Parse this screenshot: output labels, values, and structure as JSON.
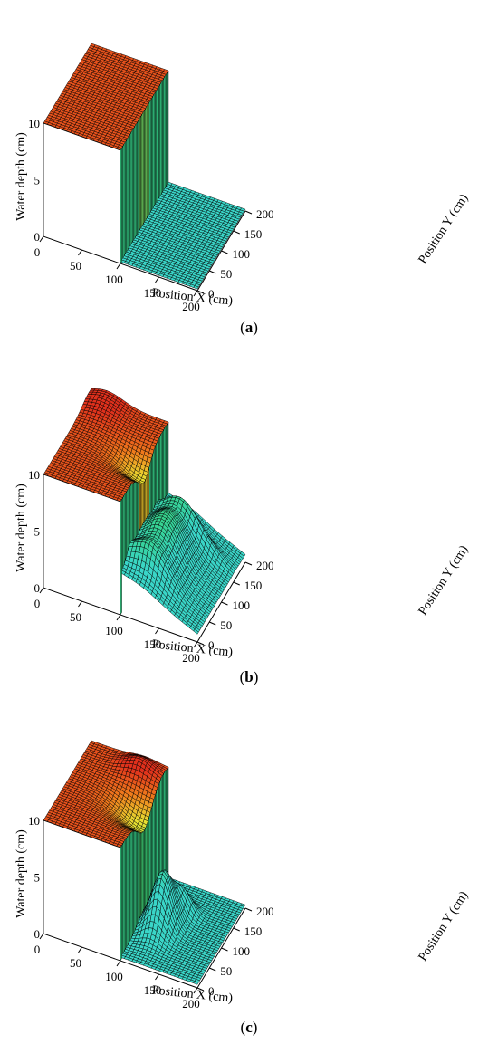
{
  "chart_data": [
    {
      "type": "surface3d",
      "panel_label": "a",
      "xlabel": "Position X (cm)",
      "ylabel": "Position Y (cm)",
      "zlabel": "Water depth (cm)",
      "xlim": [
        0,
        200
      ],
      "ylim": [
        0,
        200
      ],
      "zlim": [
        0,
        10
      ],
      "x_ticks": [
        0,
        50,
        100,
        150,
        200
      ],
      "y_ticks": [
        0,
        50,
        100,
        150,
        200
      ],
      "z_ticks": [
        0,
        5,
        10
      ],
      "dam": {
        "x_position": 100,
        "gate_y_range": [
          80,
          120
        ]
      },
      "upstream_depth": 10,
      "downstream_depth": 0,
      "time_state": "initial"
    },
    {
      "type": "surface3d",
      "panel_label": "b",
      "xlabel": "Position X (cm)",
      "ylabel": "Position Y (cm)",
      "zlabel": "Water depth (cm)",
      "xlim": [
        0,
        200
      ],
      "ylim": [
        0,
        200
      ],
      "zlim": [
        0,
        10
      ],
      "x_ticks": [
        0,
        50,
        100,
        150,
        200
      ],
      "y_ticks": [
        0,
        50,
        100,
        150,
        200
      ],
      "z_ticks": [
        0,
        5,
        10
      ],
      "dam": {
        "x_position": 100,
        "gate_y_range": [
          80,
          120
        ]
      },
      "upstream_depth": 10,
      "downstream_depth": 0,
      "time_state": "early"
    },
    {
      "type": "surface3d",
      "panel_label": "c",
      "xlabel": "Position X (cm)",
      "ylabel": "Position Y (cm)",
      "zlabel": "Water depth (cm)",
      "xlim": [
        0,
        200
      ],
      "ylim": [
        0,
        200
      ],
      "zlim": [
        0,
        10
      ],
      "x_ticks": [
        0,
        50,
        100,
        150,
        200
      ],
      "y_ticks": [
        0,
        50,
        100,
        150,
        200
      ],
      "z_ticks": [
        0,
        5,
        10
      ],
      "dam": {
        "x_position": 100,
        "gate_y_range": [
          80,
          120
        ]
      },
      "upstream_depth": 10,
      "downstream_depth": 0,
      "time_state": "later"
    }
  ],
  "colors": {
    "low": "#3ad6c8",
    "mid": "#35d27a",
    "high": "#e9e232",
    "peak": "#f07a1c",
    "max": "#e0301c"
  }
}
